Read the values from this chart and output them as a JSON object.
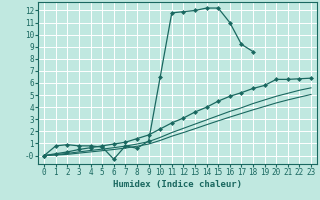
{
  "xlabel": "Humidex (Indice chaleur)",
  "xlim": [
    -0.5,
    23.5
  ],
  "ylim": [
    -0.7,
    12.7
  ],
  "yticks": [
    0,
    1,
    2,
    3,
    4,
    5,
    6,
    7,
    8,
    9,
    10,
    11,
    12
  ],
  "ytick_labels": [
    "-0",
    "1",
    "2",
    "3",
    "4",
    "5",
    "6",
    "7",
    "8",
    "9",
    "10",
    "11",
    "12"
  ],
  "xticks": [
    0,
    1,
    2,
    3,
    4,
    5,
    6,
    7,
    8,
    9,
    10,
    11,
    12,
    13,
    14,
    15,
    16,
    17,
    18,
    19,
    20,
    21,
    22,
    23
  ],
  "bg_color": "#c0e8e0",
  "grid_color": "#ffffff",
  "line_color": "#1a6860",
  "lines": [
    {
      "x": [
        0,
        1,
        2,
        3,
        4,
        5,
        6,
        7,
        8,
        9,
        10,
        11,
        12,
        13,
        14,
        15,
        16,
        17,
        18
      ],
      "y": [
        0,
        0.8,
        0.9,
        0.8,
        0.8,
        0.7,
        -0.3,
        0.8,
        0.6,
        1.2,
        6.5,
        11.8,
        11.9,
        12.0,
        12.2,
        12.2,
        11.0,
        9.2,
        8.6
      ],
      "marker": "D",
      "markersize": 2.0,
      "linewidth": 0.9
    },
    {
      "x": [
        0,
        1,
        2,
        3,
        4,
        5,
        6,
        7,
        8,
        9,
        10,
        11,
        12,
        13,
        14,
        15,
        16,
        17,
        18,
        19,
        20,
        21,
        22,
        23
      ],
      "y": [
        0,
        0.15,
        0.3,
        0.5,
        0.65,
        0.8,
        0.95,
        1.1,
        1.4,
        1.7,
        2.2,
        2.7,
        3.1,
        3.6,
        4.0,
        4.5,
        4.9,
        5.2,
        5.55,
        5.8,
        6.3,
        6.3,
        6.35,
        6.4
      ],
      "marker": "D",
      "markersize": 2.0,
      "linewidth": 0.9
    },
    {
      "x": [
        0,
        1,
        2,
        3,
        4,
        5,
        6,
        7,
        8,
        9,
        10,
        11,
        12,
        13,
        14,
        15,
        16,
        17,
        18,
        19,
        20,
        21,
        22,
        23
      ],
      "y": [
        0,
        0.08,
        0.18,
        0.3,
        0.42,
        0.53,
        0.65,
        0.78,
        0.95,
        1.15,
        1.5,
        1.9,
        2.25,
        2.6,
        2.95,
        3.3,
        3.65,
        3.95,
        4.3,
        4.6,
        4.9,
        5.15,
        5.4,
        5.6
      ],
      "marker": null,
      "markersize": 0,
      "linewidth": 0.8
    },
    {
      "x": [
        0,
        1,
        2,
        3,
        4,
        5,
        6,
        7,
        8,
        9,
        10,
        11,
        12,
        13,
        14,
        15,
        16,
        17,
        18,
        19,
        20,
        21,
        22,
        23
      ],
      "y": [
        0,
        0.04,
        0.1,
        0.2,
        0.3,
        0.4,
        0.5,
        0.62,
        0.77,
        0.95,
        1.25,
        1.6,
        1.9,
        2.22,
        2.55,
        2.87,
        3.18,
        3.48,
        3.78,
        4.06,
        4.35,
        4.6,
        4.83,
        5.05
      ],
      "marker": null,
      "markersize": 0,
      "linewidth": 0.8
    }
  ],
  "figsize": [
    3.2,
    2.0
  ],
  "dpi": 100,
  "font_size_ticks": 5.5,
  "font_size_xlabel": 6.5
}
